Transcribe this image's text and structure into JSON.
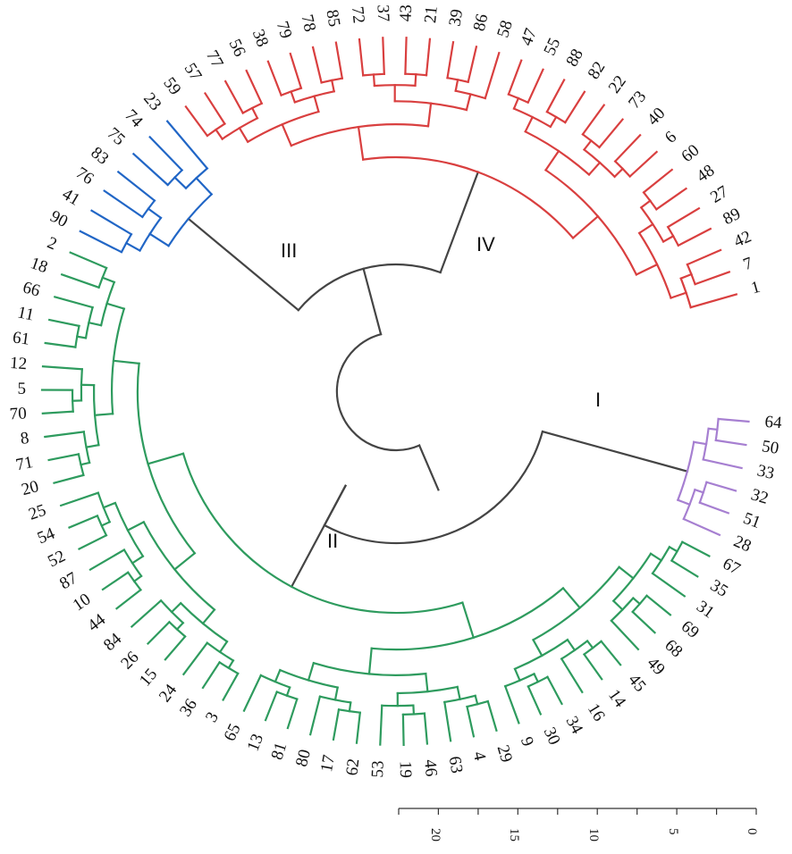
{
  "clade_labels": {
    "I": "I",
    "II": "II",
    "III": "III",
    "IV": "IV"
  },
  "colors": {
    "trunk": "#444444",
    "cluster_I": "#a67fd1",
    "cluster_II": "#2e9b5e",
    "cluster_III": "#2166c6",
    "cluster_IV": "#d93f3f"
  },
  "scale_bar": {
    "ticks": [
      "20",
      "15",
      "10",
      "5",
      "0"
    ]
  },
  "leaves": {
    "I": [
      "64",
      "50",
      "33",
      "32",
      "51",
      "28"
    ],
    "II": [
      "67",
      "35",
      "31",
      "69",
      "68",
      "49",
      "45",
      "14",
      "16",
      "34",
      "30",
      "9",
      "29",
      "4",
      "63",
      "46",
      "19",
      "53",
      "62",
      "17",
      "80",
      "81",
      "13",
      "65",
      "3",
      "36",
      "24",
      "15",
      "26",
      "84",
      "44",
      "10",
      "87",
      "52",
      "54",
      "25",
      "20",
      "71",
      "8",
      "70",
      "5",
      "12",
      "61",
      "11",
      "66",
      "18",
      "2"
    ],
    "III": [
      "90",
      "41",
      "76",
      "83",
      "75",
      "74",
      "23"
    ],
    "IV": [
      "59",
      "57",
      "77",
      "56",
      "38",
      "79",
      "78",
      "85",
      "72",
      "37",
      "43",
      "21",
      "39",
      "86",
      "58",
      "47",
      "55",
      "88",
      "82",
      "22",
      "73",
      "40",
      "6",
      "60",
      "48",
      "27",
      "89",
      "42",
      "7",
      "1"
    ]
  }
}
